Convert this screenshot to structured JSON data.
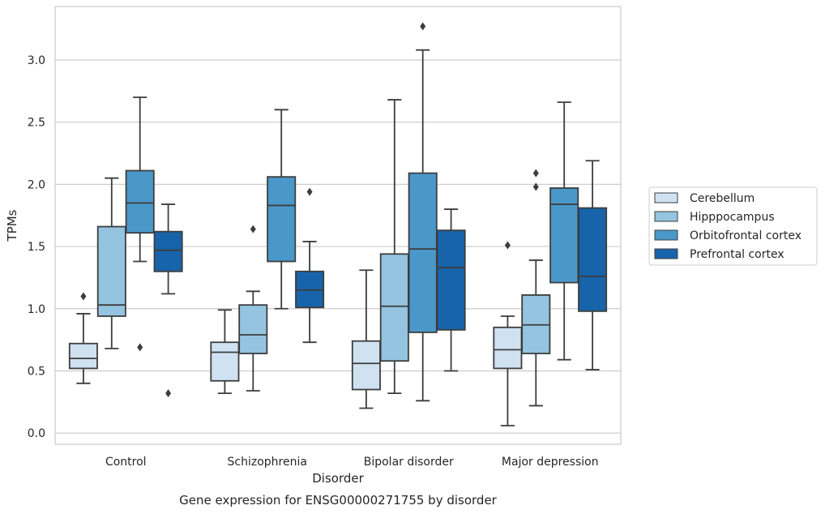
{
  "chart_data": {
    "type": "box",
    "caption": "Gene expression for ENSG00000271755 by disorder",
    "xlabel": "Disorder",
    "ylabel": "TPMs",
    "ylim": [
      -0.09,
      3.43
    ],
    "yticks": [
      0.0,
      0.5,
      1.0,
      1.5,
      2.0,
      2.5,
      3.0
    ],
    "ytick_labels": [
      "0.0",
      "0.5",
      "1.0",
      "1.5",
      "2.0",
      "2.5",
      "3.0"
    ],
    "grid": "horizontal",
    "legend_position": "right",
    "categories": [
      "Control",
      "Schizophrenia",
      "Bipolar disorder",
      "Major depression"
    ],
    "series": [
      {
        "name": "Cerebellum",
        "color": "#d0e1f2",
        "boxes": [
          {
            "whislo": 0.4,
            "q1": 0.52,
            "med": 0.6,
            "q3": 0.72,
            "whishi": 0.96,
            "fliers": [
              1.1
            ]
          },
          {
            "whislo": 0.32,
            "q1": 0.42,
            "med": 0.65,
            "q3": 0.73,
            "whishi": 0.99,
            "fliers": []
          },
          {
            "whislo": 0.2,
            "q1": 0.35,
            "med": 0.56,
            "q3": 0.74,
            "whishi": 1.31,
            "fliers": []
          },
          {
            "whislo": 0.06,
            "q1": 0.52,
            "med": 0.67,
            "q3": 0.85,
            "whishi": 0.94,
            "fliers": [
              1.51
            ]
          }
        ]
      },
      {
        "name": "Hipppocampus",
        "color": "#94c4df",
        "boxes": [
          {
            "whislo": 0.68,
            "q1": 0.94,
            "med": 1.03,
            "q3": 1.66,
            "whishi": 2.05,
            "fliers": []
          },
          {
            "whislo": 0.34,
            "q1": 0.64,
            "med": 0.79,
            "q3": 1.03,
            "whishi": 1.14,
            "fliers": [
              1.64
            ]
          },
          {
            "whislo": 0.32,
            "q1": 0.58,
            "med": 1.02,
            "q3": 1.44,
            "whishi": 2.68,
            "fliers": []
          },
          {
            "whislo": 0.22,
            "q1": 0.64,
            "med": 0.87,
            "q3": 1.11,
            "whishi": 1.39,
            "fliers": [
              1.98,
              2.09
            ]
          }
        ]
      },
      {
        "name": "Orbitofrontal cortex",
        "color": "#4a98c9",
        "boxes": [
          {
            "whislo": 1.38,
            "q1": 1.61,
            "med": 1.85,
            "q3": 2.11,
            "whishi": 2.7,
            "fliers": [
              0.69
            ]
          },
          {
            "whislo": 1.0,
            "q1": 1.38,
            "med": 1.83,
            "q3": 2.06,
            "whishi": 2.6,
            "fliers": []
          },
          {
            "whislo": 0.26,
            "q1": 0.81,
            "med": 1.48,
            "q3": 2.09,
            "whishi": 3.08,
            "fliers": [
              3.27
            ]
          },
          {
            "whislo": 0.59,
            "q1": 1.21,
            "med": 1.84,
            "q3": 1.97,
            "whishi": 2.66,
            "fliers": []
          }
        ]
      },
      {
        "name": "Prefrontal cortex",
        "color": "#1764ab",
        "boxes": [
          {
            "whislo": 1.12,
            "q1": 1.3,
            "med": 1.47,
            "q3": 1.62,
            "whishi": 1.84,
            "fliers": [
              0.32
            ]
          },
          {
            "whislo": 0.73,
            "q1": 1.01,
            "med": 1.15,
            "q3": 1.3,
            "whishi": 1.54,
            "fliers": [
              1.94
            ]
          },
          {
            "whislo": 0.5,
            "q1": 0.83,
            "med": 1.33,
            "q3": 1.63,
            "whishi": 1.8,
            "fliers": []
          },
          {
            "whislo": 0.51,
            "q1": 0.98,
            "med": 1.26,
            "q3": 1.81,
            "whishi": 2.19,
            "fliers": []
          }
        ]
      }
    ]
  }
}
